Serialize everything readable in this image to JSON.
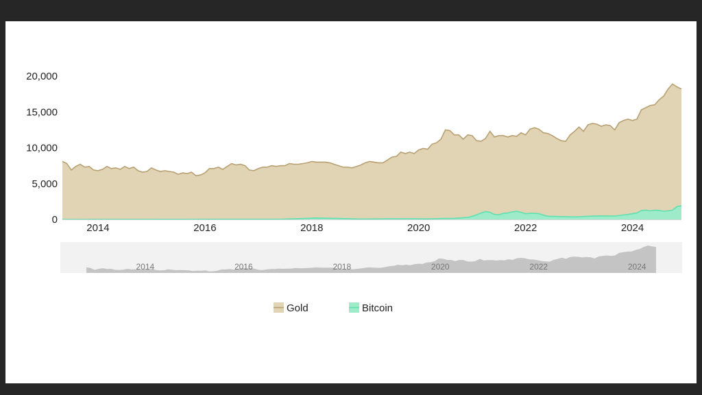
{
  "chart_data": {
    "type": "area",
    "stacked": false,
    "title": "",
    "xlabel": "",
    "ylabel": "",
    "x_start": "2013-05",
    "x_end": "2024-12",
    "ylim": [
      0,
      20000
    ],
    "y_ticks": [
      "0",
      "5,000",
      "10,000",
      "15,000",
      "20,000"
    ],
    "x_ticks": [
      "2014",
      "2016",
      "2018",
      "2020",
      "2022",
      "2024"
    ],
    "series": [
      {
        "name": "Gold",
        "color": "#b8a072",
        "fill": "#e0d4b4",
        "points": [
          [
            "2013-05",
            8100
          ],
          [
            "2013-06",
            7800
          ],
          [
            "2013-07",
            6900
          ],
          [
            "2013-08",
            7400
          ],
          [
            "2013-09",
            7700
          ],
          [
            "2013-10",
            7300
          ],
          [
            "2013-11",
            7400
          ],
          [
            "2013-12",
            6900
          ],
          [
            "2014-01",
            6800
          ],
          [
            "2014-02",
            7000
          ],
          [
            "2014-03",
            7400
          ],
          [
            "2014-04",
            7100
          ],
          [
            "2014-05",
            7200
          ],
          [
            "2014-06",
            7000
          ],
          [
            "2014-07",
            7400
          ],
          [
            "2014-08",
            7100
          ],
          [
            "2014-09",
            7300
          ],
          [
            "2014-10",
            6800
          ],
          [
            "2014-11",
            6600
          ],
          [
            "2014-12",
            6700
          ],
          [
            "2015-01",
            7200
          ],
          [
            "2015-02",
            6900
          ],
          [
            "2015-03",
            6700
          ],
          [
            "2015-04",
            6800
          ],
          [
            "2015-05",
            6700
          ],
          [
            "2015-06",
            6600
          ],
          [
            "2015-07",
            6300
          ],
          [
            "2015-08",
            6500
          ],
          [
            "2015-09",
            6400
          ],
          [
            "2015-10",
            6600
          ],
          [
            "2015-11",
            6100
          ],
          [
            "2015-12",
            6200
          ],
          [
            "2016-01",
            6500
          ],
          [
            "2016-02",
            7100
          ],
          [
            "2016-03",
            7100
          ],
          [
            "2016-04",
            7300
          ],
          [
            "2016-05",
            7000
          ],
          [
            "2016-06",
            7400
          ],
          [
            "2016-07",
            7800
          ],
          [
            "2016-08",
            7600
          ],
          [
            "2016-09",
            7700
          ],
          [
            "2016-10",
            7500
          ],
          [
            "2016-11",
            6900
          ],
          [
            "2016-12",
            6800
          ],
          [
            "2017-01",
            7100
          ],
          [
            "2017-02",
            7300
          ],
          [
            "2017-03",
            7300
          ],
          [
            "2017-04",
            7500
          ],
          [
            "2017-05",
            7400
          ],
          [
            "2017-06",
            7500
          ],
          [
            "2017-07",
            7500
          ],
          [
            "2017-08",
            7800
          ],
          [
            "2017-09",
            7700
          ],
          [
            "2017-10",
            7700
          ],
          [
            "2017-11",
            7800
          ],
          [
            "2017-12",
            7900
          ],
          [
            "2018-01",
            8100
          ],
          [
            "2018-02",
            8000
          ],
          [
            "2018-03",
            8000
          ],
          [
            "2018-04",
            8000
          ],
          [
            "2018-05",
            7900
          ],
          [
            "2018-06",
            7700
          ],
          [
            "2018-07",
            7500
          ],
          [
            "2018-08",
            7300
          ],
          [
            "2018-09",
            7300
          ],
          [
            "2018-10",
            7200
          ],
          [
            "2018-11",
            7400
          ],
          [
            "2018-12",
            7600
          ],
          [
            "2019-01",
            7900
          ],
          [
            "2019-02",
            8100
          ],
          [
            "2019-03",
            8000
          ],
          [
            "2019-04",
            7900
          ],
          [
            "2019-05",
            7900
          ],
          [
            "2019-06",
            8300
          ],
          [
            "2019-07",
            8700
          ],
          [
            "2019-08",
            8800
          ],
          [
            "2019-09",
            9400
          ],
          [
            "2019-10",
            9200
          ],
          [
            "2019-11",
            9400
          ],
          [
            "2019-12",
            9200
          ],
          [
            "2020-01",
            9700
          ],
          [
            "2020-02",
            9900
          ],
          [
            "2020-03",
            9800
          ],
          [
            "2020-04",
            10500
          ],
          [
            "2020-05",
            10700
          ],
          [
            "2020-06",
            11200
          ],
          [
            "2020-07",
            12500
          ],
          [
            "2020-08",
            12400
          ],
          [
            "2020-09",
            11800
          ],
          [
            "2020-10",
            11800
          ],
          [
            "2020-11",
            11200
          ],
          [
            "2020-12",
            11800
          ],
          [
            "2021-01",
            11700
          ],
          [
            "2021-02",
            11000
          ],
          [
            "2021-03",
            10900
          ],
          [
            "2021-04",
            11300
          ],
          [
            "2021-05",
            12300
          ],
          [
            "2021-06",
            11500
          ],
          [
            "2021-07",
            11700
          ],
          [
            "2021-08",
            11700
          ],
          [
            "2021-09",
            11500
          ],
          [
            "2021-10",
            11700
          ],
          [
            "2021-11",
            11600
          ],
          [
            "2021-12",
            12100
          ],
          [
            "2022-01",
            11800
          ],
          [
            "2022-02",
            12600
          ],
          [
            "2022-03",
            12800
          ],
          [
            "2022-04",
            12600
          ],
          [
            "2022-05",
            12100
          ],
          [
            "2022-06",
            12000
          ],
          [
            "2022-07",
            11700
          ],
          [
            "2022-08",
            11300
          ],
          [
            "2022-09",
            11000
          ],
          [
            "2022-10",
            10900
          ],
          [
            "2022-11",
            11800
          ],
          [
            "2022-12",
            12300
          ],
          [
            "2023-01",
            12900
          ],
          [
            "2023-02",
            12300
          ],
          [
            "2023-03",
            13200
          ],
          [
            "2023-04",
            13400
          ],
          [
            "2023-05",
            13300
          ],
          [
            "2023-06",
            13000
          ],
          [
            "2023-07",
            13200
          ],
          [
            "2023-08",
            13100
          ],
          [
            "2023-09",
            12500
          ],
          [
            "2023-10",
            13500
          ],
          [
            "2023-11",
            13800
          ],
          [
            "2023-12",
            14000
          ],
          [
            "2024-01",
            13800
          ],
          [
            "2024-02",
            14000
          ],
          [
            "2024-03",
            15300
          ],
          [
            "2024-04",
            15600
          ],
          [
            "2024-05",
            15900
          ],
          [
            "2024-06",
            16000
          ],
          [
            "2024-07",
            16700
          ],
          [
            "2024-08",
            17200
          ],
          [
            "2024-09",
            18200
          ],
          [
            "2024-10",
            18900
          ],
          [
            "2024-11",
            18500
          ],
          [
            "2024-12",
            18200
          ]
        ]
      },
      {
        "name": "Bitcoin",
        "color": "#5ee0b0",
        "fill": "#9debc8",
        "points": [
          [
            "2013-05",
            0
          ],
          [
            "2017-06",
            30
          ],
          [
            "2017-12",
            150
          ],
          [
            "2018-02",
            200
          ],
          [
            "2018-06",
            150
          ],
          [
            "2018-12",
            60
          ],
          [
            "2019-06",
            100
          ],
          [
            "2019-12",
            90
          ],
          [
            "2020-03",
            80
          ],
          [
            "2020-06",
            120
          ],
          [
            "2020-09",
            150
          ],
          [
            "2020-12",
            280
          ],
          [
            "2021-01",
            450
          ],
          [
            "2021-02",
            650
          ],
          [
            "2021-03",
            900
          ],
          [
            "2021-04",
            1100
          ],
          [
            "2021-05",
            1000
          ],
          [
            "2021-06",
            700
          ],
          [
            "2021-07",
            650
          ],
          [
            "2021-08",
            850
          ],
          [
            "2021-09",
            900
          ],
          [
            "2021-10",
            1050
          ],
          [
            "2021-11",
            1150
          ],
          [
            "2021-12",
            1000
          ],
          [
            "2022-01",
            800
          ],
          [
            "2022-02",
            850
          ],
          [
            "2022-03",
            850
          ],
          [
            "2022-04",
            800
          ],
          [
            "2022-05",
            600
          ],
          [
            "2022-06",
            450
          ],
          [
            "2022-09",
            400
          ],
          [
            "2022-12",
            350
          ],
          [
            "2023-01",
            380
          ],
          [
            "2023-03",
            450
          ],
          [
            "2023-06",
            500
          ],
          [
            "2023-09",
            480
          ],
          [
            "2023-12",
            700
          ],
          [
            "2024-02",
            900
          ],
          [
            "2024-03",
            1250
          ],
          [
            "2024-04",
            1300
          ],
          [
            "2024-05",
            1200
          ],
          [
            "2024-06",
            1300
          ],
          [
            "2024-07",
            1250
          ],
          [
            "2024-08",
            1150
          ],
          [
            "2024-09",
            1200
          ],
          [
            "2024-10",
            1300
          ],
          [
            "2024-11",
            1800
          ],
          [
            "2024-12",
            1900
          ]
        ]
      }
    ],
    "navigator": {
      "x_ticks": [
        "2014",
        "2016",
        "2018",
        "2020",
        "2022",
        "2024"
      ],
      "color": "#c4c4c4",
      "background": "#f2f2f2"
    },
    "legend": {
      "position": "bottom-center",
      "items": [
        {
          "label": "Gold",
          "color": "#b8a072",
          "fill": "#e0d4b4"
        },
        {
          "label": "Bitcoin",
          "color": "#5ee0b0",
          "fill": "#9debc8"
        }
      ]
    }
  }
}
